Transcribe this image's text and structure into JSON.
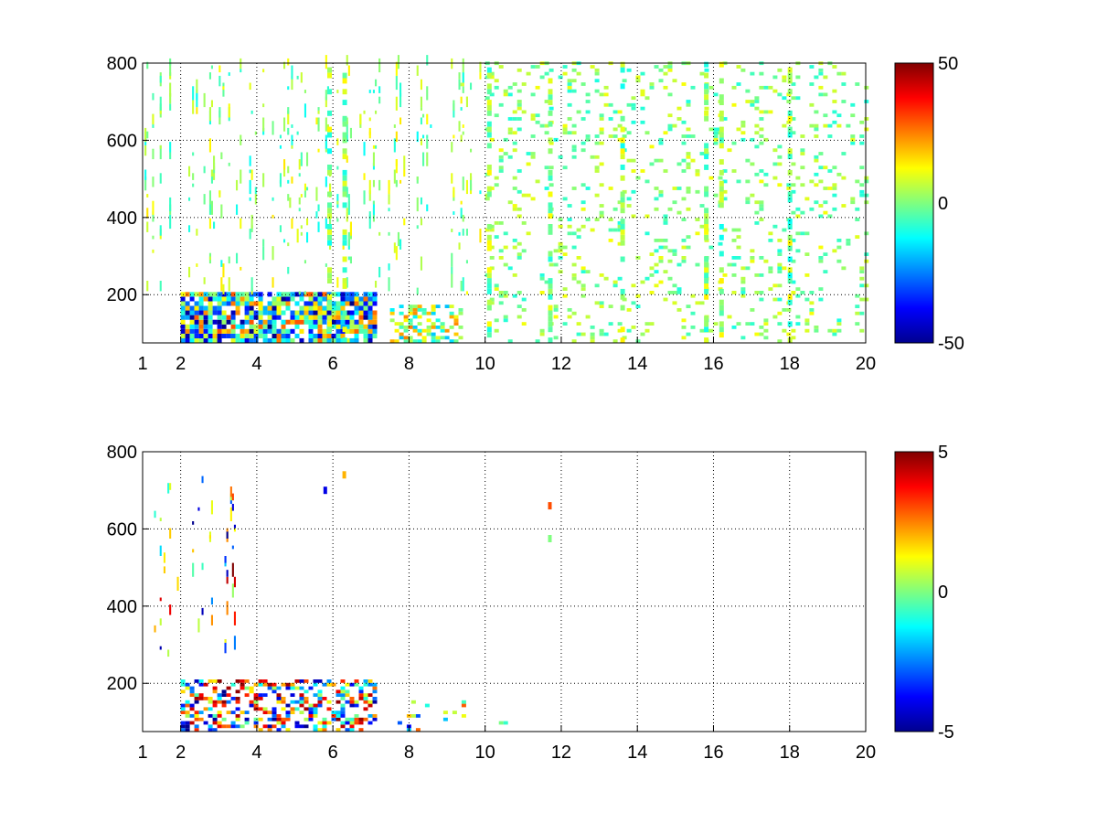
{
  "chart_data": [
    {
      "type": "heatmap",
      "title": "",
      "xlabel": "",
      "ylabel": "",
      "xlim": [
        1,
        20
      ],
      "ylim": [
        75,
        800
      ],
      "xticks": [
        1,
        2,
        4,
        6,
        8,
        10,
        12,
        14,
        16,
        18,
        20
      ],
      "yticks": [
        200,
        400,
        600,
        800
      ],
      "grid": true,
      "colormap": "jet",
      "clim": [
        -50,
        50
      ],
      "colorbar_ticks": [
        -50,
        0,
        50
      ],
      "description_regions": [
        {
          "x": [
            2,
            7.1
          ],
          "y": [
            75,
            200
          ],
          "value_range": [
            -50,
            30
          ],
          "density": "dense"
        },
        {
          "x": [
            7.5,
            9.4
          ],
          "y": [
            75,
            170
          ],
          "value_range": [
            -20,
            25
          ],
          "density": "medium"
        },
        {
          "x": [
            1,
            10
          ],
          "y": [
            200,
            800
          ],
          "value_range": [
            -12,
            15
          ],
          "density": "streaks"
        },
        {
          "x": [
            10,
            20
          ],
          "y": [
            75,
            800
          ],
          "value_range": [
            -10,
            12
          ],
          "density": "sparse"
        }
      ],
      "strong_columns_x": [
        5.9,
        6.3,
        10.1,
        11.7,
        13.6,
        15.8,
        16.2,
        18.0
      ]
    },
    {
      "type": "heatmap",
      "title": "",
      "xlabel": "",
      "ylabel": "",
      "xlim": [
        1,
        20
      ],
      "ylim": [
        75,
        800
      ],
      "xticks": [
        1,
        2,
        4,
        6,
        8,
        10,
        12,
        14,
        16,
        18,
        20
      ],
      "yticks": [
        200,
        400,
        600,
        800
      ],
      "grid": true,
      "colormap": "jet",
      "clim": [
        -5,
        5
      ],
      "colorbar_ticks": [
        -5,
        0,
        5
      ],
      "description_regions": [
        {
          "x": [
            2,
            7.1
          ],
          "y": [
            75,
            210
          ],
          "value_range": [
            -5,
            5
          ],
          "density": "medium"
        },
        {
          "x": [
            7.7,
            9.4
          ],
          "y": [
            75,
            150
          ],
          "value_range": [
            -4,
            4
          ],
          "density": "sparse"
        },
        {
          "x": [
            1.3,
            3.5
          ],
          "y": [
            260,
            760
          ],
          "value_range": [
            -5,
            5
          ],
          "density": "vertical-streaks"
        },
        {
          "x": [
            10,
            10.5
          ],
          "y": [
            75,
            100
          ],
          "value_range": [
            -2,
            0
          ],
          "density": "sparse"
        }
      ],
      "isolated_marks": [
        {
          "x": 5.8,
          "y": 700,
          "value": -4
        },
        {
          "x": 6.3,
          "y": 740,
          "value": 2
        },
        {
          "x": 11.7,
          "y": 660,
          "value": 3
        },
        {
          "x": 11.7,
          "y": 575,
          "value": 0
        }
      ]
    }
  ]
}
